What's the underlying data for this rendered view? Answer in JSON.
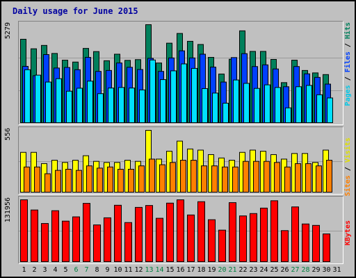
{
  "title": "Daily usage for June 2015",
  "y_max": {
    "pages_panel": "5279",
    "visits_panel": "556",
    "kbytes_panel": "131956"
  },
  "side_labels": {
    "pages": "Pages",
    "files": "Files",
    "hits": "Hits",
    "sites": "Sites",
    "visits": "Visits",
    "kbytes": "KBytes",
    "sep": " / "
  },
  "colors": {
    "background": "#c0c0c0",
    "hits": "#00805c",
    "files": "#0040ff",
    "pages": "#00e0ff",
    "visits": "#ffff00",
    "sites": "#ff8000",
    "kbytes": "#ff0000",
    "title": "#0000a0",
    "weekend_label": "#008040"
  },
  "chart_data": [
    {
      "type": "bar",
      "title": "Daily usage for June 2015",
      "categories": [
        "1",
        "2",
        "3",
        "4",
        "5",
        "6",
        "7",
        "8",
        "9",
        "10",
        "11",
        "12",
        "13",
        "14",
        "15",
        "16",
        "17",
        "18",
        "19",
        "20",
        "21",
        "22",
        "23",
        "24",
        "25",
        "26",
        "27",
        "28",
        "29",
        "30",
        "31"
      ],
      "weekend_days": [
        "6",
        "7",
        "13",
        "14",
        "20",
        "21",
        "27",
        "28"
      ],
      "ylim": [
        0,
        5279
      ],
      "series": [
        {
          "name": "Hits",
          "color": "#00805c",
          "values": [
            4500,
            3990,
            4170,
            3740,
            3380,
            3280,
            4010,
            3840,
            3350,
            3700,
            3370,
            3410,
            5279,
            3230,
            4290,
            4810,
            4390,
            4220,
            3530,
            2640,
            3430,
            4950,
            3850,
            3850,
            3420,
            2180,
            3380,
            2830,
            2700,
            2610,
            0
          ]
        },
        {
          "name": "Files",
          "color": "#0040ff",
          "values": [
            3050,
            2550,
            3680,
            2960,
            2990,
            2870,
            3530,
            2780,
            2830,
            3230,
            3000,
            2880,
            3480,
            2780,
            3500,
            3880,
            3500,
            3700,
            3010,
            2210,
            3520,
            3730,
            3040,
            3130,
            2910,
            1960,
            3040,
            2650,
            2460,
            2100,
            0
          ]
        },
        {
          "name": "Pages",
          "color": "#00e0ff",
          "values": [
            2870,
            2580,
            2210,
            2390,
            1720,
            1880,
            2260,
            1590,
            1890,
            1920,
            1890,
            1790,
            3390,
            2340,
            2810,
            3180,
            2940,
            1860,
            1620,
            1080,
            2320,
            2140,
            1870,
            2060,
            1920,
            830,
            1960,
            2030,
            1530,
            1360,
            0
          ]
        }
      ]
    },
    {
      "type": "bar",
      "categories": [
        "1",
        "2",
        "3",
        "4",
        "5",
        "6",
        "7",
        "8",
        "9",
        "10",
        "11",
        "12",
        "13",
        "14",
        "15",
        "16",
        "17",
        "18",
        "19",
        "20",
        "21",
        "22",
        "23",
        "24",
        "25",
        "26",
        "27",
        "28",
        "29",
        "30",
        "31"
      ],
      "ylim": [
        0,
        556
      ],
      "series": [
        {
          "name": "Visits",
          "color": "#ffff00",
          "values": [
            360,
            360,
            260,
            290,
            270,
            290,
            330,
            280,
            270,
            270,
            290,
            280,
            556,
            300,
            370,
            460,
            390,
            380,
            340,
            310,
            290,
            360,
            380,
            370,
            340,
            300,
            350,
            350,
            270,
            380,
            0
          ]
        },
        {
          "name": "Sites",
          "color": "#ff8000",
          "values": [
            230,
            230,
            170,
            200,
            210,
            200,
            240,
            220,
            230,
            210,
            210,
            240,
            300,
            250,
            270,
            290,
            290,
            240,
            240,
            230,
            230,
            280,
            280,
            280,
            270,
            230,
            260,
            260,
            240,
            290,
            0
          ]
        }
      ]
    },
    {
      "type": "bar",
      "categories": [
        "1",
        "2",
        "3",
        "4",
        "5",
        "6",
        "7",
        "8",
        "9",
        "10",
        "11",
        "12",
        "13",
        "14",
        "15",
        "16",
        "17",
        "18",
        "19",
        "20",
        "21",
        "22",
        "23",
        "24",
        "25",
        "26",
        "27",
        "28",
        "29",
        "30",
        "31"
      ],
      "ylim": [
        0,
        131956
      ],
      "series": [
        {
          "name": "KBytes",
          "color": "#ff0000",
          "values": [
            131956,
            110500,
            82000,
            109000,
            87000,
            96000,
            124500,
            79000,
            94000,
            120500,
            84000,
            116000,
            120000,
            93000,
            125000,
            131956,
            100000,
            128000,
            90000,
            68000,
            126000,
            98000,
            103000,
            114500,
            130000,
            67000,
            117000,
            81000,
            78000,
            60000,
            0
          ]
        }
      ]
    }
  ]
}
